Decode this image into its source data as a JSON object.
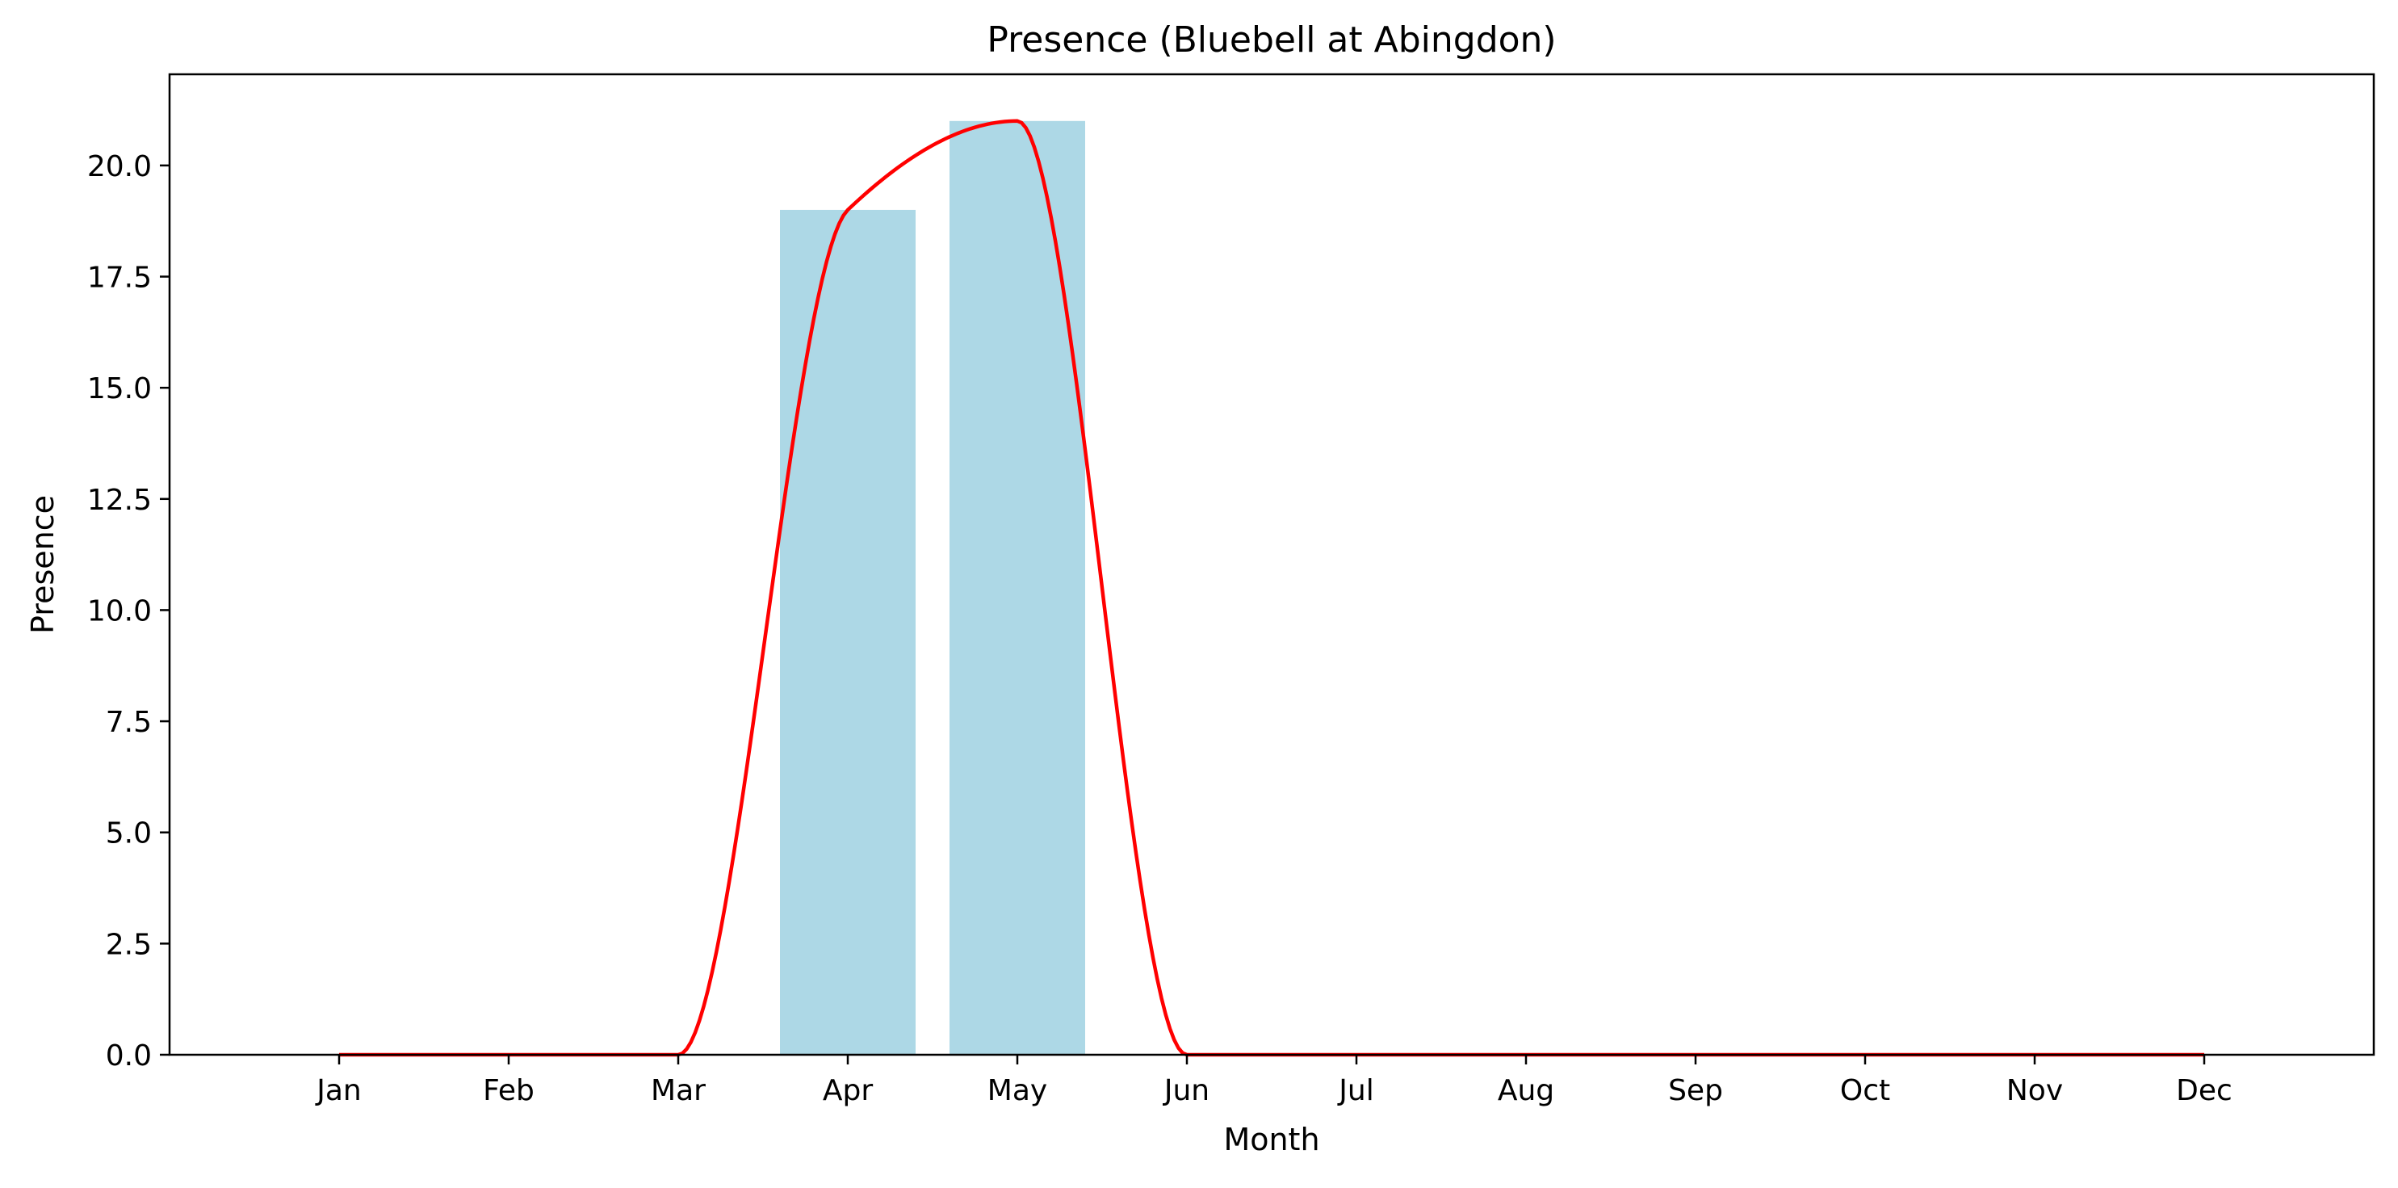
{
  "chart_data": {
    "type": "bar",
    "title": "Presence (Bluebell at Abingdon)",
    "xlabel": "Month",
    "ylabel": "Presence",
    "categories": [
      "Jan",
      "Feb",
      "Mar",
      "Apr",
      "May",
      "Jun",
      "Jul",
      "Aug",
      "Sep",
      "Oct",
      "Nov",
      "Dec"
    ],
    "values": [
      0,
      0,
      0,
      19,
      21,
      0,
      0,
      0,
      0,
      0,
      0,
      0
    ],
    "y_ticks": [
      "0.0",
      "2.5",
      "5.0",
      "7.5",
      "10.0",
      "12.5",
      "15.0",
      "17.5",
      "20.0"
    ],
    "ylim": [
      0,
      22.05
    ],
    "grid": false,
    "bar_color": "#add8e6",
    "series": [
      {
        "type": "bar",
        "values": [
          0,
          0,
          0,
          19,
          21,
          0,
          0,
          0,
          0,
          0,
          0,
          0
        ],
        "color": "#add8e6"
      },
      {
        "type": "line",
        "style": "smoothed",
        "values": [
          0,
          0,
          0,
          19,
          21,
          0,
          0,
          0,
          0,
          0,
          0,
          0
        ],
        "color": "#ff0000"
      }
    ]
  }
}
